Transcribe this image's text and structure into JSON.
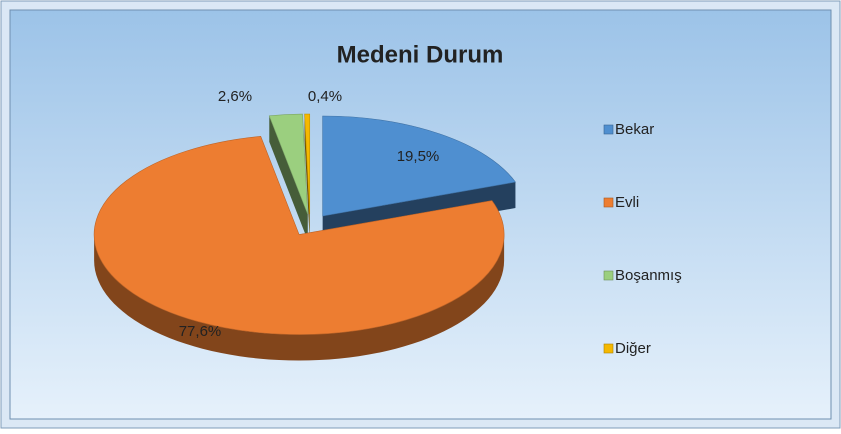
{
  "chart_data": {
    "type": "pie3d",
    "title": "Medeni Durum",
    "categories": [
      "Bekar",
      "Evli",
      "Boşanmış",
      "Diğer"
    ],
    "values": [
      19.5,
      77.6,
      2.6,
      0.4
    ],
    "value_labels": [
      "19,5%",
      "77,6%",
      "2,6%",
      "0,4%"
    ],
    "colors": [
      "#4f8fd0",
      "#ed7d31",
      "#9bcf7f",
      "#f5b800"
    ],
    "legend": "right"
  }
}
